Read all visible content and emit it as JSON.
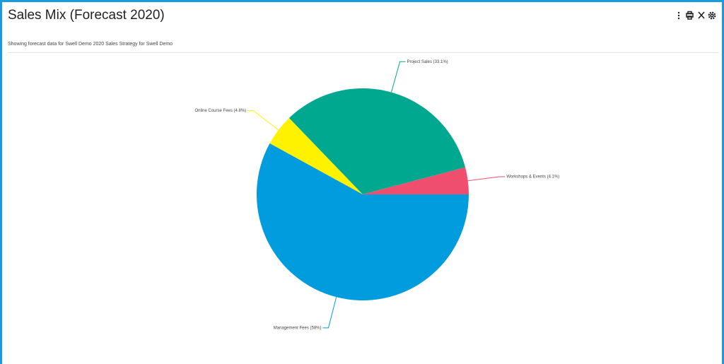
{
  "header": {
    "title": "Sales Mix (Forecast 2020)",
    "subtitle": "Showing forecast data for Swell Demo 2020 Sales Strategy for Swell Demo"
  },
  "chart_data": {
    "type": "pie",
    "values": [
      58,
      4.8,
      33.1,
      4.1
    ],
    "value_labels": [
      "Management Fees (58%)",
      "Online Course Fees (4.8%)",
      "Project Sales (33.1%)",
      "Workshops & Events (4.1%)"
    ],
    "colors": [
      "#009cde",
      "#fff200",
      "#00a88f",
      "#f04e6e"
    ]
  }
}
